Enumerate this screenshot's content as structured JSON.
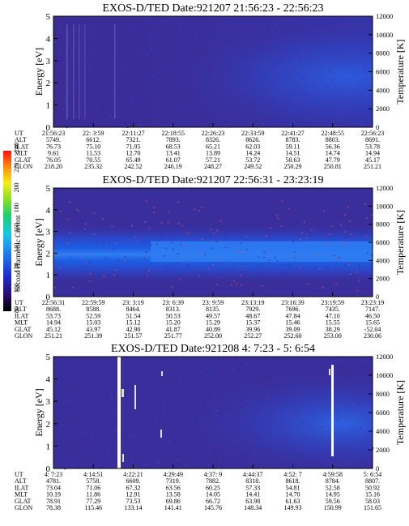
{
  "colorbar": {
    "label": "Second Harmonic Current",
    "ticks": [
      "80",
      "100",
      "120",
      "140",
      "160",
      "180",
      "200",
      "220",
      "240"
    ]
  },
  "axes_labels": {
    "ylabel_left": "Energy [eV]",
    "ylabel_right": "Temperature [K]"
  },
  "row_labels": [
    "UT",
    "ALT",
    "ILAT",
    "MLT",
    "GLAT",
    "GLON"
  ],
  "colors": {
    "background": "#3a2e9c",
    "band_light": "#2f74ef",
    "band_mid": "#1c4fd8",
    "band_dark": "#2a3fbf",
    "streak": "#ffffff"
  },
  "chart_data": [
    {
      "type": "heatmap",
      "title": "EXOS-D/TED   Date:921207  21:56:23 - 22:56:23",
      "ylim_left": [
        0,
        5
      ],
      "ylim_right": [
        0,
        12000
      ],
      "yticks_left": [
        "0",
        "1",
        "2",
        "3",
        "4",
        "5"
      ],
      "yticks_right": [
        "0",
        "2000",
        "4000",
        "6000",
        "8000",
        "10000",
        "12000"
      ],
      "table": {
        "UT": [
          "21:56:23",
          "22: 3:59",
          "22:11:27",
          "22:18:55",
          "22:26:23",
          "22:33:59",
          "22:41:27",
          "22:48:55",
          "22:56:23"
        ],
        "ALT": [
          "5749.",
          "6612.",
          "7321.",
          "7893.",
          "8326.",
          "8626.",
          "8783.",
          "8803.",
          "8691."
        ],
        "ILAT": [
          "76.73",
          "75.10",
          "71.95",
          "68.53",
          "65.21",
          "62.03",
          "59.11",
          "56.36",
          "53.78"
        ],
        "MLT": [
          "9.61",
          "11.53",
          "12.70",
          "13.41",
          "13.89",
          "14.24",
          "14.51",
          "14.74",
          "14.94"
        ],
        "GLAT": [
          "76.05",
          "70.55",
          "65.49",
          "61.07",
          "57.21",
          "53.72",
          "50.63",
          "47.79",
          "45.17"
        ],
        "GLON": [
          "218.20",
          "235.32",
          "242.52",
          "246.19",
          "248.27",
          "249.52",
          "250.29",
          "250.81",
          "251.21"
        ]
      }
    },
    {
      "type": "heatmap",
      "title": "EXOS-D/TED   Date:921207  22:56:31 - 23:23:19",
      "ylim_left": [
        0,
        5
      ],
      "ylim_right": [
        0,
        12000
      ],
      "yticks_left": [
        "0",
        "1",
        "2",
        "3",
        "4",
        "5"
      ],
      "yticks_right": [
        "0",
        "2000",
        "4000",
        "6000",
        "8000",
        "10000",
        "12000"
      ],
      "table": {
        "UT": [
          "22:56:31",
          "22:59:59",
          "23: 3:19",
          "23: 6:39",
          "23: 9:59",
          "23:13:19",
          "23:16:39",
          "23:19:59",
          "23:23:19"
        ],
        "ALT": [
          "8688.",
          "8588.",
          "8464.",
          "8313.",
          "8135.",
          "7929.",
          "7696.",
          "7435.",
          "7147."
        ],
        "ILAT": [
          "53.73",
          "52.59",
          "51.54",
          "50.53",
          "49.57",
          "48.67",
          "47.84",
          "47.10",
          "46.50"
        ],
        "MLT": [
          "14.94",
          "15.03",
          "15.12",
          "15.20",
          "15.29",
          "15.37",
          "15.46",
          "15.55",
          "15.65"
        ],
        "GLAT": [
          "45.12",
          "43.97",
          "42.90",
          "41.87",
          "40.89",
          "39.96",
          "39.09",
          "38.29",
          "-52.04"
        ],
        "GLON": [
          "251.21",
          "251.39",
          "251.57",
          "251.77",
          "252.00",
          "252.27",
          "252.60",
          "253.00",
          "230.06"
        ]
      }
    },
    {
      "type": "heatmap",
      "title": "EXOS-D/TED   Date:921208   4: 7:23 - 5: 6:54",
      "ylim_left": [
        0,
        5
      ],
      "ylim_right": [
        0,
        12000
      ],
      "yticks_left": [
        "0",
        "1",
        "2",
        "3",
        "4",
        "5"
      ],
      "yticks_right": [
        "0",
        "2000",
        "4000",
        "6000",
        "8000",
        "10000",
        "12000"
      ],
      "table": {
        "UT": [
          "4: 7:23",
          "4:14:51",
          "4:22:21",
          "4:29:49",
          "4:37: 9",
          "4:44:37",
          "4:52: 7",
          "4:59:58",
          "5: 6:54"
        ],
        "ALT": [
          "4781.",
          "5758.",
          "6609.",
          "7319.",
          "7882.",
          "8318.",
          "8618.",
          "8784.",
          "8807."
        ],
        "ILAT": [
          "73.04",
          "71.06",
          "67.32",
          "63.56",
          "60.25",
          "57.33",
          "54.81",
          "52.58",
          "50.92"
        ],
        "MLT": [
          "10.19",
          "11.86",
          "12.91",
          "13.58",
          "14.05",
          "14.41",
          "14.70",
          "14.95",
          "15.16"
        ],
        "GLAT": [
          "78.91",
          "77.29",
          "73.53",
          "69.86",
          "66.72",
          "63.98",
          "61.63",
          "59.56",
          "58.03"
        ],
        "GLON": [
          "78.38",
          "115.46",
          "133.14",
          "141.41",
          "145.76",
          "148.34",
          "149.93",
          "150.99",
          "151.65"
        ]
      }
    }
  ]
}
